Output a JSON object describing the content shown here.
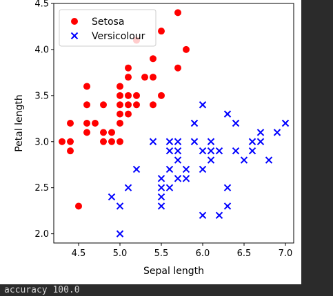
{
  "chart_data": {
    "type": "scatter",
    "title": "",
    "xlabel": "Sepal length",
    "ylabel": "Petal length",
    "xlim": [
      4.2,
      7.1
    ],
    "ylim": [
      1.9,
      4.5
    ],
    "xticks": [
      4.5,
      5.0,
      5.5,
      6.0,
      6.5,
      7.0
    ],
    "yticks": [
      2.0,
      2.5,
      3.0,
      3.5,
      4.0,
      4.5
    ],
    "grid": false,
    "legend_position": "top-left",
    "series": [
      {
        "name": "Setosa",
        "marker": "circle",
        "color": "#ff0000",
        "points": [
          [
            4.3,
            3.0
          ],
          [
            4.4,
            2.9
          ],
          [
            4.4,
            3.0
          ],
          [
            4.4,
            3.2
          ],
          [
            4.5,
            2.3
          ],
          [
            4.6,
            3.1
          ],
          [
            4.6,
            3.2
          ],
          [
            4.6,
            3.4
          ],
          [
            4.6,
            3.6
          ],
          [
            4.7,
            3.2
          ],
          [
            4.8,
            3.0
          ],
          [
            4.8,
            3.1
          ],
          [
            4.8,
            3.4
          ],
          [
            4.9,
            3.0
          ],
          [
            4.9,
            3.1
          ],
          [
            5.0,
            3.0
          ],
          [
            5.0,
            3.2
          ],
          [
            5.0,
            3.3
          ],
          [
            5.0,
            3.4
          ],
          [
            5.0,
            3.5
          ],
          [
            5.0,
            3.6
          ],
          [
            5.1,
            3.3
          ],
          [
            5.1,
            3.4
          ],
          [
            5.1,
            3.5
          ],
          [
            5.1,
            3.7
          ],
          [
            5.1,
            3.8
          ],
          [
            5.2,
            3.4
          ],
          [
            5.2,
            3.5
          ],
          [
            5.2,
            4.1
          ],
          [
            5.3,
            3.7
          ],
          [
            5.4,
            3.4
          ],
          [
            5.4,
            3.7
          ],
          [
            5.4,
            3.9
          ],
          [
            5.5,
            3.5
          ],
          [
            5.5,
            4.2
          ],
          [
            5.7,
            3.8
          ],
          [
            5.7,
            4.4
          ],
          [
            5.8,
            4.0
          ]
        ]
      },
      {
        "name": "Versicolour",
        "marker": "x",
        "color": "#0000ff",
        "points": [
          [
            4.9,
            2.4
          ],
          [
            5.0,
            2.0
          ],
          [
            5.0,
            2.3
          ],
          [
            5.1,
            2.5
          ],
          [
            5.2,
            2.7
          ],
          [
            5.4,
            3.0
          ],
          [
            5.5,
            2.3
          ],
          [
            5.5,
            2.4
          ],
          [
            5.5,
            2.5
          ],
          [
            5.5,
            2.6
          ],
          [
            5.6,
            2.5
          ],
          [
            5.6,
            2.7
          ],
          [
            5.6,
            2.9
          ],
          [
            5.6,
            3.0
          ],
          [
            5.7,
            2.6
          ],
          [
            5.7,
            2.8
          ],
          [
            5.7,
            2.9
          ],
          [
            5.7,
            3.0
          ],
          [
            5.8,
            2.6
          ],
          [
            5.8,
            2.7
          ],
          [
            5.9,
            3.0
          ],
          [
            5.9,
            3.2
          ],
          [
            6.0,
            2.2
          ],
          [
            6.0,
            2.7
          ],
          [
            6.0,
            2.9
          ],
          [
            6.0,
            3.4
          ],
          [
            6.1,
            2.8
          ],
          [
            6.1,
            2.9
          ],
          [
            6.1,
            3.0
          ],
          [
            6.2,
            2.2
          ],
          [
            6.2,
            2.9
          ],
          [
            6.3,
            2.3
          ],
          [
            6.3,
            2.5
          ],
          [
            6.3,
            3.3
          ],
          [
            6.4,
            2.9
          ],
          [
            6.4,
            3.2
          ],
          [
            6.5,
            2.8
          ],
          [
            6.6,
            2.9
          ],
          [
            6.6,
            3.0
          ],
          [
            6.7,
            3.0
          ],
          [
            6.7,
            3.1
          ],
          [
            6.8,
            2.8
          ],
          [
            6.9,
            3.1
          ],
          [
            7.0,
            3.2
          ]
        ]
      }
    ]
  },
  "console": {
    "output_text": "accuracy 100.0"
  }
}
